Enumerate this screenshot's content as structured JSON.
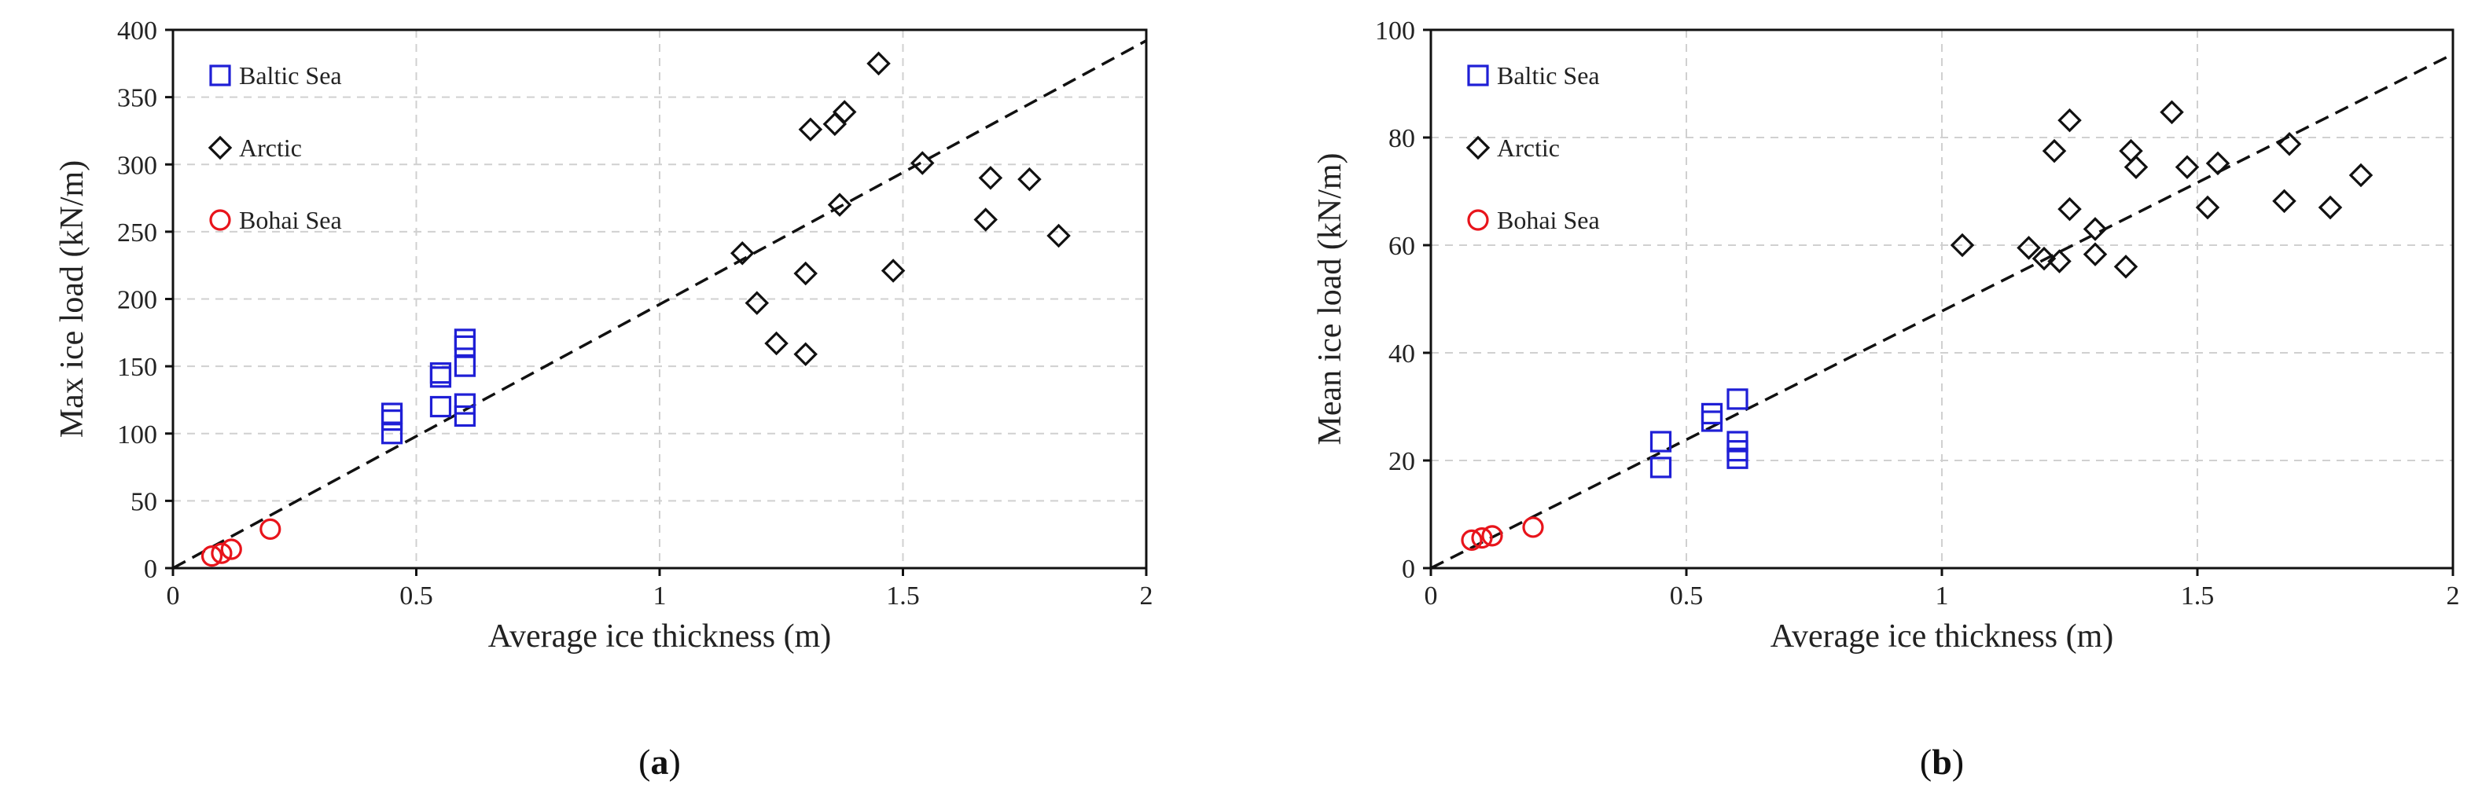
{
  "chart_data": [
    {
      "type": "scatter",
      "caption_label": "a",
      "xlabel": "Average ice thickness (m)",
      "ylabel": "Max ice load (kN/m)",
      "xlim": [
        0,
        2
      ],
      "ylim": [
        0,
        400
      ],
      "xticks": [
        "0",
        "0.5",
        "1",
        "1.5",
        "2"
      ],
      "yticks": [
        "0",
        "50",
        "100",
        "150",
        "200",
        "250",
        "300",
        "350",
        "400"
      ],
      "grid": true,
      "legend_position": "top-left",
      "trendline": {
        "x": [
          0,
          2
        ],
        "y": [
          0,
          392
        ]
      },
      "series": [
        {
          "name": "Baltic Sea",
          "marker": "square",
          "color": "#1f1fd6",
          "x": [
            0.45,
            0.45,
            0.45,
            0.55,
            0.55,
            0.55,
            0.6,
            0.6,
            0.6,
            0.6,
            0.6
          ],
          "y": [
            100,
            110,
            115,
            120,
            142,
            145,
            113,
            122,
            150,
            165,
            170
          ]
        },
        {
          "name": "Arctic",
          "marker": "diamond",
          "color": "#111111",
          "x": [
            1.17,
            1.2,
            1.24,
            1.3,
            1.3,
            1.31,
            1.36,
            1.37,
            1.38,
            1.45,
            1.48,
            1.54,
            1.67,
            1.68,
            1.76,
            1.82
          ],
          "y": [
            234,
            197,
            167,
            159,
            219,
            326,
            330,
            270,
            339,
            375,
            221,
            301,
            259,
            290,
            289,
            247
          ]
        },
        {
          "name": "Bohai Sea",
          "marker": "circle",
          "color": "#e8141b",
          "x": [
            0.08,
            0.1,
            0.12,
            0.2
          ],
          "y": [
            9,
            11,
            14,
            29
          ]
        }
      ]
    },
    {
      "type": "scatter",
      "caption_label": "b",
      "xlabel": "Average ice thickness (m)",
      "ylabel": "Mean ice load (kN/m)",
      "xlim": [
        0,
        2
      ],
      "ylim": [
        0,
        100
      ],
      "xticks": [
        "0",
        "0.5",
        "1",
        "1.5",
        "2"
      ],
      "yticks": [
        "0",
        "20",
        "40",
        "60",
        "80",
        "100"
      ],
      "grid": true,
      "legend_position": "top-left",
      "trendline": {
        "x": [
          0,
          2
        ],
        "y": [
          0,
          95.5
        ]
      },
      "series": [
        {
          "name": "Baltic Sea",
          "marker": "square",
          "color": "#1f1fd6",
          "x": [
            0.45,
            0.45,
            0.55,
            0.55,
            0.6,
            0.6,
            0.6,
            0.6
          ],
          "y": [
            18.7,
            23.5,
            27.3,
            28.7,
            20.4,
            21.8,
            23.5,
            31.4
          ]
        },
        {
          "name": "Arctic",
          "marker": "diamond",
          "color": "#111111",
          "x": [
            1.04,
            1.17,
            1.2,
            1.22,
            1.23,
            1.25,
            1.25,
            1.3,
            1.3,
            1.36,
            1.37,
            1.38,
            1.45,
            1.48,
            1.52,
            1.54,
            1.67,
            1.68,
            1.76,
            1.82
          ],
          "y": [
            60,
            59.5,
            57.5,
            77.5,
            57,
            66.7,
            83.2,
            58.3,
            63,
            56,
            77.5,
            74.5,
            84.7,
            74.5,
            67,
            75.2,
            68.2,
            78.8,
            67,
            73
          ]
        },
        {
          "name": "Bohai Sea",
          "marker": "circle",
          "color": "#e8141b",
          "x": [
            0.08,
            0.1,
            0.12,
            0.2
          ],
          "y": [
            5.2,
            5.6,
            6,
            7.6
          ]
        }
      ]
    }
  ]
}
